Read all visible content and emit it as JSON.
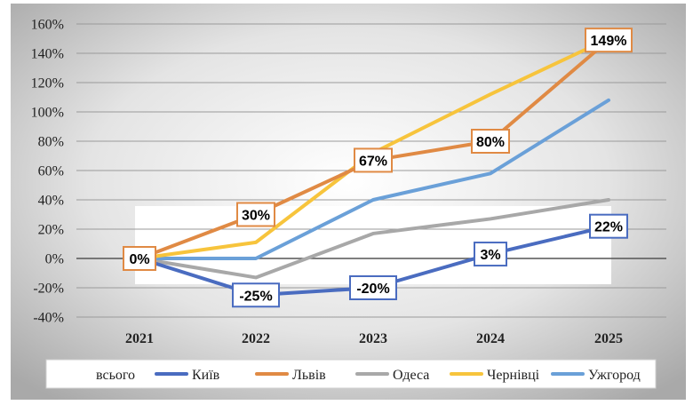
{
  "chart_data": {
    "type": "line",
    "categories": [
      "2021",
      "2022",
      "2023",
      "2024",
      "2025"
    ],
    "ylim": [
      -40,
      160
    ],
    "ytick_step": 20,
    "ytick_suffix": "%",
    "grid": true,
    "legend_position": "bottom",
    "legend_first_label": "всього",
    "series": [
      {
        "name": "Київ",
        "color": "#4a6cc0",
        "values": [
          0,
          -25,
          -20,
          3,
          22
        ],
        "labels": [
          "",
          "-25%",
          "-20%",
          "3%",
          "22%"
        ],
        "label_border": "#4a6cc0"
      },
      {
        "name": "Львів",
        "color": "#e08a44",
        "values": [
          0,
          30,
          67,
          80,
          149
        ],
        "labels": [
          "0%",
          "30%",
          "67%",
          "80%",
          "149%"
        ],
        "label_border": "#e08a44"
      },
      {
        "name": "Одеса",
        "color": "#a8a8a8",
        "values": [
          0,
          -13,
          17,
          27,
          40
        ]
      },
      {
        "name": "Чернівці",
        "color": "#f7c43c",
        "values": [
          0,
          11,
          72,
          112,
          150
        ]
      },
      {
        "name": "Ужгород",
        "color": "#6aa0d8",
        "values": [
          0,
          0,
          40,
          58,
          108
        ]
      }
    ]
  }
}
